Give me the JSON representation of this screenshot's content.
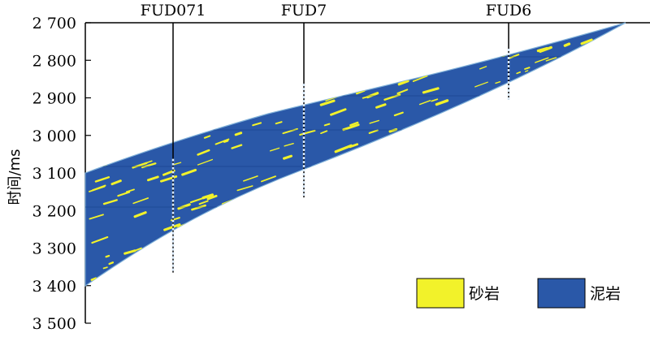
{
  "axis": {
    "ylabel": "时间/ms",
    "ticks": [
      "2 700",
      "2 800",
      "2 900",
      "3 000",
      "3 100",
      "3 200",
      "3 300",
      "3 400",
      "3 500"
    ],
    "tick_values": [
      2700,
      2800,
      2900,
      3000,
      3100,
      3200,
      3300,
      3400,
      3500
    ],
    "ylim": [
      2700,
      3500
    ]
  },
  "wells": [
    {
      "name": "FUD071",
      "bottom_ms": 3365
    },
    {
      "name": "FUD7",
      "bottom_ms": 3165
    },
    {
      "name": "FUD6",
      "bottom_ms": 2905
    }
  ],
  "legend": [
    {
      "label": "砂岩",
      "color": "#f2f22a"
    },
    {
      "label": "泥岩",
      "color": "#2a58a8"
    }
  ],
  "colors": {
    "sand": "#f2f22a",
    "mud": "#2a58a8"
  }
}
